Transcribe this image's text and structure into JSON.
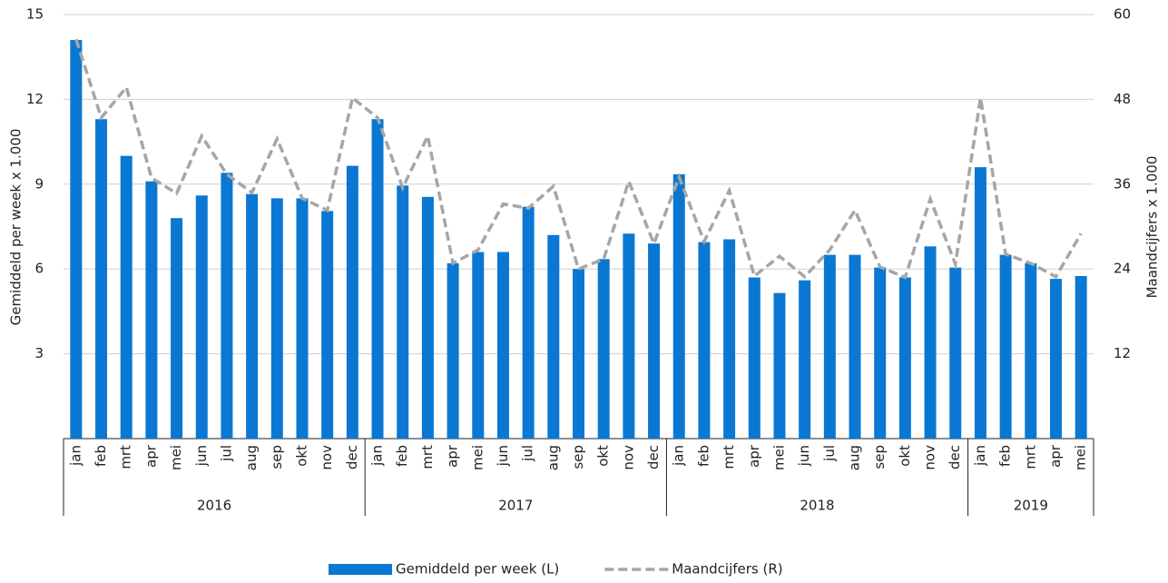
{
  "chart_data": {
    "type": "bar-line",
    "groups": [
      {
        "label": "2016",
        "categories": [
          "jan",
          "feb",
          "mrt",
          "apr",
          "mei",
          "jun",
          "jul",
          "aug",
          "sep",
          "okt",
          "nov",
          "dec"
        ]
      },
      {
        "label": "2017",
        "categories": [
          "jan",
          "feb",
          "mrt",
          "apr",
          "mei",
          "jun",
          "jul",
          "aug",
          "sep",
          "okt",
          "nov",
          "dec"
        ]
      },
      {
        "label": "2018",
        "categories": [
          "jan",
          "feb",
          "mrt",
          "apr",
          "mei",
          "jun",
          "jul",
          "aug",
          "sep",
          "okt",
          "nov",
          "dec"
        ]
      },
      {
        "label": "2019",
        "categories": [
          "jan",
          "feb",
          "mrt",
          "apr",
          "mei"
        ]
      }
    ],
    "series": [
      {
        "name": "Gemiddeld per week (L)",
        "type": "bar",
        "color": "#0a78d2",
        "axis": "y",
        "values": [
          14.1,
          11.3,
          10.0,
          9.1,
          7.8,
          8.6,
          9.4,
          8.65,
          8.5,
          8.5,
          8.05,
          9.65,
          11.3,
          8.95,
          8.55,
          6.2,
          6.6,
          6.6,
          8.2,
          7.2,
          6.0,
          6.35,
          7.25,
          6.9,
          9.35,
          6.95,
          7.05,
          5.7,
          5.15,
          5.6,
          6.5,
          6.5,
          6.05,
          5.7,
          6.8,
          6.05,
          9.6,
          6.5,
          6.2,
          5.65,
          5.75
        ]
      },
      {
        "name": "Maandcijfers (R)",
        "type": "line",
        "color": "#a6a6a6",
        "axis": "y2",
        "dashed": true,
        "values": [
          56.5,
          45.4,
          49.7,
          36.9,
          34.7,
          42.8,
          37.4,
          34.8,
          42.4,
          34.0,
          32.3,
          48.2,
          45.4,
          35.5,
          42.8,
          24.8,
          26.7,
          33.2,
          32.6,
          35.7,
          24.0,
          25.4,
          36.4,
          27.6,
          37.0,
          27.9,
          35.1,
          23.0,
          25.8,
          22.9,
          26.7,
          32.3,
          24.3,
          22.8,
          33.9,
          24.7,
          48.2,
          26.1,
          24.8,
          22.9,
          29.0
        ]
      }
    ],
    "y_label": "Gemiddeld per week x 1.000",
    "y2_label": "Maandcijfers x 1.000",
    "ylim": [
      0,
      15
    ],
    "yticks": [
      3,
      6,
      9,
      12,
      15
    ],
    "y2lim": [
      0,
      60
    ],
    "y2ticks": [
      12,
      24,
      36,
      48,
      60
    ],
    "grid": true,
    "legend": "bottom"
  }
}
